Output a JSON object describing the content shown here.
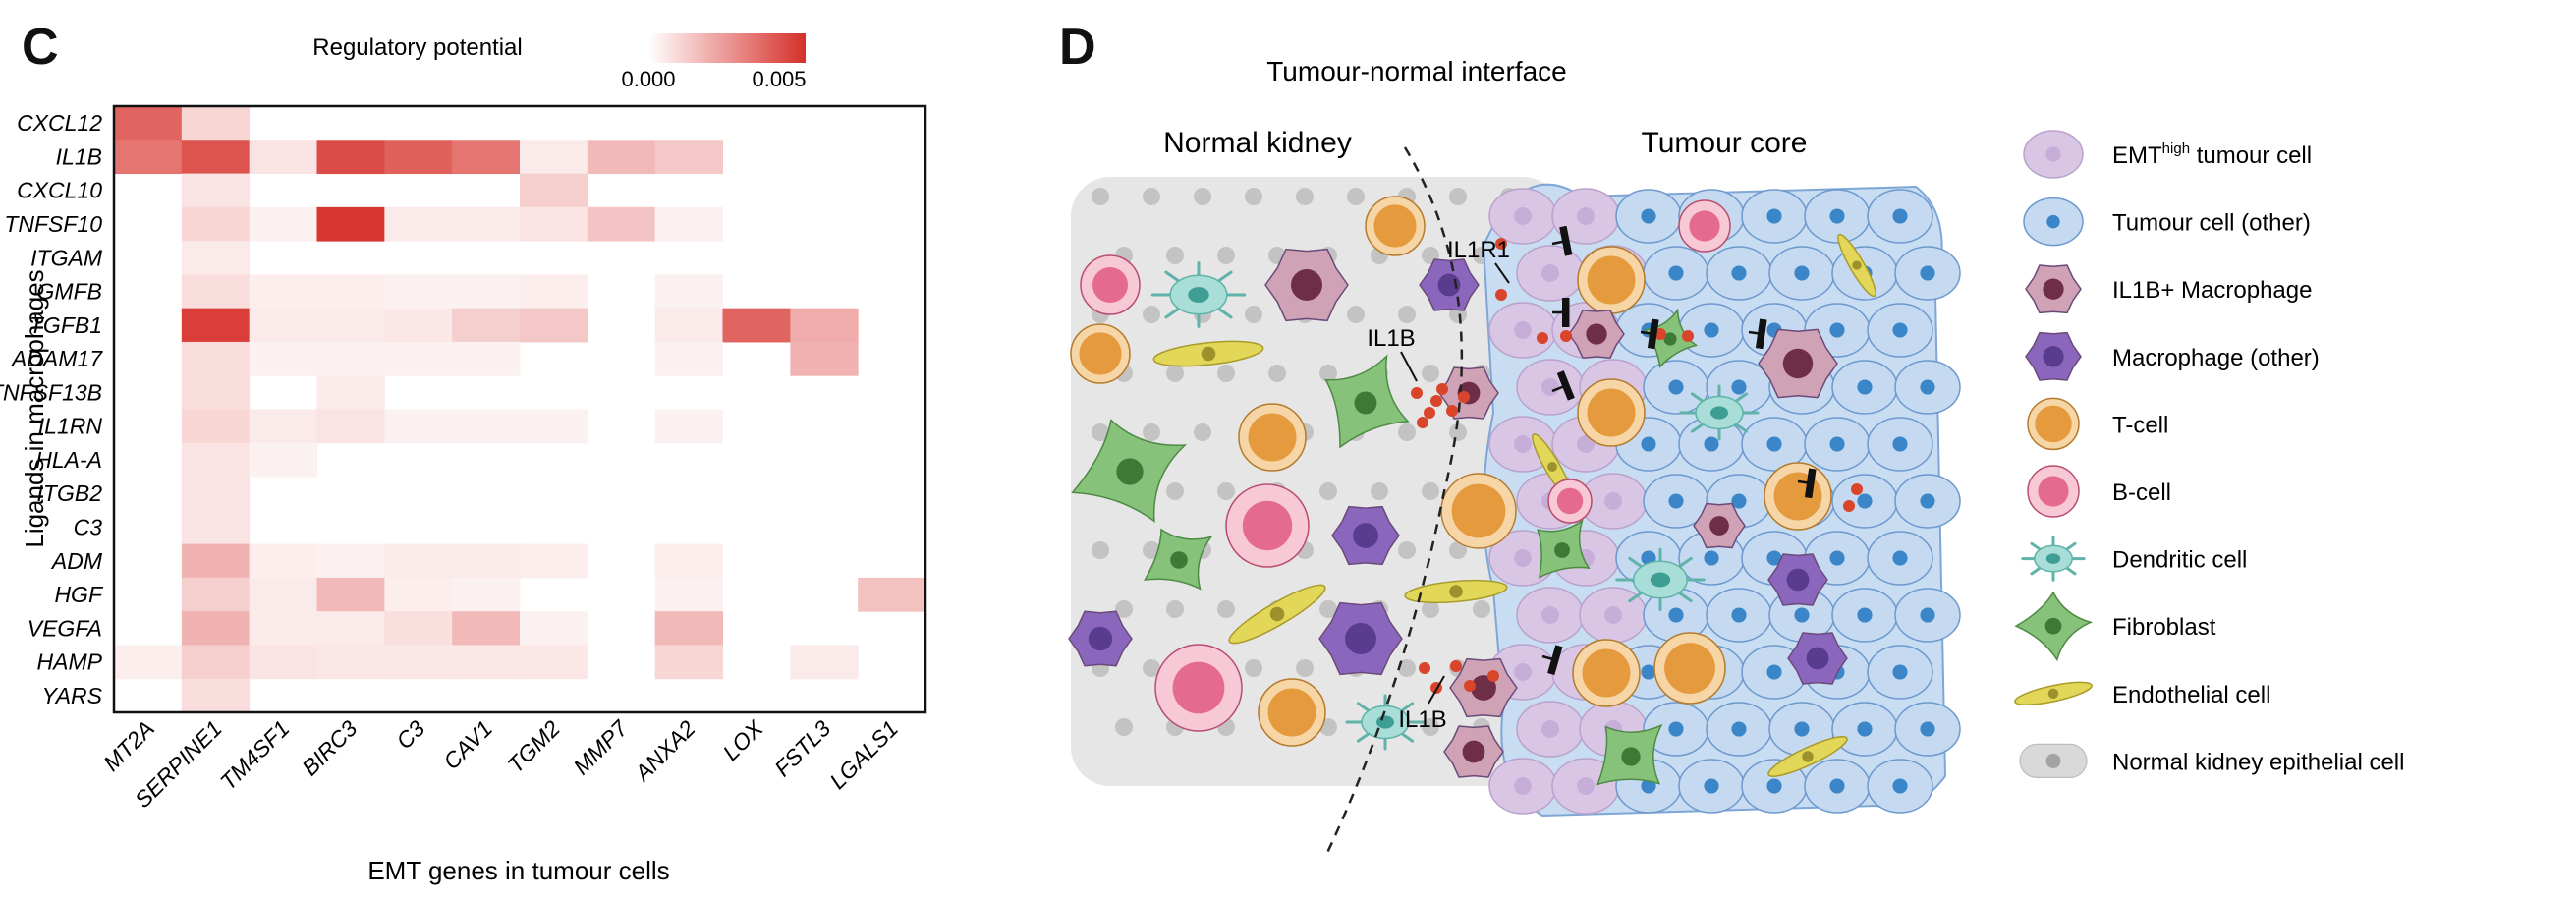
{
  "panel_c": {
    "letter": "C"
  },
  "panel_d": {
    "letter": "D",
    "title": "Tumour-normal interface",
    "region_left": "Normal kidney",
    "region_right": "Tumour core",
    "labels": {
      "receptor": "IL1R1",
      "ligand_top": "IL1B",
      "ligand_bottom": "IL1B"
    },
    "legend": [
      {
        "prefix": "EMT",
        "sup": "high",
        "suffix": " tumour cell",
        "icon": "emt-high-tumour-cell-icon"
      },
      {
        "prefix": "Tumour cell (other)",
        "sup": "",
        "suffix": "",
        "icon": "tumour-cell-icon"
      },
      {
        "prefix": "IL1B+ Macrophage",
        "sup": "",
        "suffix": "",
        "icon": "il1b-macrophage-icon"
      },
      {
        "prefix": "Macrophage (other)",
        "sup": "",
        "suffix": "",
        "icon": "macrophage-icon"
      },
      {
        "prefix": "T-cell",
        "sup": "",
        "suffix": "",
        "icon": "t-cell-icon"
      },
      {
        "prefix": "B-cell",
        "sup": "",
        "suffix": "",
        "icon": "b-cell-icon"
      },
      {
        "prefix": "Dendritic cell",
        "sup": "",
        "suffix": "",
        "icon": "dendritic-cell-icon"
      },
      {
        "prefix": "Fibroblast",
        "sup": "",
        "suffix": "",
        "icon": "fibroblast-icon"
      },
      {
        "prefix": "Endothelial cell",
        "sup": "",
        "suffix": "",
        "icon": "endothelial-cell-icon"
      },
      {
        "prefix": "Normal kidney epithelial cell",
        "sup": "",
        "suffix": "",
        "icon": "kidney-epithelial-cell-icon"
      }
    ]
  },
  "colors": {
    "heat_low": "#ffffff",
    "heat_high": "#d6302a",
    "emt_tumour": "#d9c6e4",
    "tumour_other": "#c5d9f0",
    "nucleus_blue": "#3a86c8",
    "macrophage_il1b": "#cfa3b5",
    "macrophage_other": "#8a67bd",
    "tcell": "#e49a3d",
    "bcell": "#e46b8f",
    "dendritic": "#a9ded8",
    "fibroblast": "#86c27a",
    "endothelial": "#e3d75a",
    "epithelial": "#d9d9d9",
    "il1b_dot": "#d9452b"
  },
  "chart_data": {
    "type": "heatmap",
    "title": "",
    "xlabel": "EMT genes in tumour cells",
    "ylabel": "Ligands in macrophages",
    "x": [
      "MT2A",
      "SERPINE1",
      "TM4SF1",
      "BIRC3",
      "C3",
      "CAV1",
      "TGM2",
      "MMP7",
      "ANXA2",
      "LOX",
      "FSTL3",
      "LGALS1"
    ],
    "y": [
      "CXCL12",
      "IL1B",
      "CXCL10",
      "TNFSF10",
      "ITGAM",
      "GMFB",
      "TGFB1",
      "ADAM17",
      "TNFSF13B",
      "IL1RN",
      "HLA-A",
      "ITGB2",
      "C3",
      "ADM",
      "HGF",
      "VEGFA",
      "HAMP",
      "YARS"
    ],
    "values": [
      [
        0.0045,
        0.0012,
        0,
        0,
        0,
        0,
        0,
        0,
        0,
        0,
        0,
        0
      ],
      [
        0.004,
        0.005,
        0.0008,
        0.0052,
        0.0046,
        0.004,
        0.0006,
        0.002,
        0.0016,
        0,
        0,
        0
      ],
      [
        0,
        0.0008,
        0,
        0,
        0,
        0,
        0.0014,
        0,
        0,
        0,
        0,
        0
      ],
      [
        0,
        0.0012,
        0.0004,
        0.0058,
        0.0006,
        0.0006,
        0.0008,
        0.0017,
        0.0004,
        0,
        0,
        0
      ],
      [
        0,
        0.0006,
        0,
        0,
        0,
        0,
        0,
        0,
        0,
        0,
        0,
        0
      ],
      [
        0,
        0.001,
        0.0005,
        0.0005,
        0.0004,
        0.0004,
        0.0005,
        0,
        0.0004,
        0,
        0,
        0
      ],
      [
        0,
        0.0056,
        0.0006,
        0.0006,
        0.0007,
        0.0014,
        0.0016,
        0,
        0.0006,
        0.0045,
        0.0024,
        0
      ],
      [
        0,
        0.001,
        0.0004,
        0.0004,
        0.0004,
        0.0004,
        0,
        0,
        0.0004,
        0,
        0.0022,
        0
      ],
      [
        0,
        0.001,
        0,
        0.0006,
        0,
        0,
        0,
        0,
        0,
        0,
        0,
        0
      ],
      [
        0,
        0.0012,
        0.0006,
        0.0008,
        0.0004,
        0.0004,
        0.0004,
        0,
        0.0004,
        0,
        0,
        0
      ],
      [
        0,
        0.0008,
        0.0004,
        0,
        0,
        0,
        0,
        0,
        0,
        0,
        0,
        0
      ],
      [
        0,
        0.0008,
        0,
        0,
        0,
        0,
        0,
        0,
        0,
        0,
        0,
        0
      ],
      [
        0,
        0.0008,
        0,
        0,
        0,
        0,
        0,
        0,
        0,
        0,
        0,
        0
      ],
      [
        0,
        0.0022,
        0.0005,
        0.0004,
        0.0006,
        0.0006,
        0.0005,
        0,
        0.0005,
        0,
        0,
        0
      ],
      [
        0,
        0.0014,
        0.0006,
        0.002,
        0.0005,
        0.0004,
        0,
        0,
        0.0004,
        0,
        0,
        0.0018
      ],
      [
        0,
        0.0022,
        0.0006,
        0.0006,
        0.0009,
        0.002,
        0.0004,
        0,
        0.002,
        0,
        0,
        0
      ],
      [
        0.0005,
        0.0014,
        0.0008,
        0.0007,
        0.0007,
        0.0007,
        0.0007,
        0,
        0.0012,
        0,
        0.0006,
        0
      ],
      [
        0,
        0.001,
        0,
        0,
        0,
        0,
        0,
        0,
        0,
        0,
        0,
        0
      ]
    ],
    "colorbar": {
      "label": "Regulatory potential",
      "ticks": [
        "0.000",
        "0.005"
      ],
      "range": [
        0,
        0.006
      ]
    }
  }
}
